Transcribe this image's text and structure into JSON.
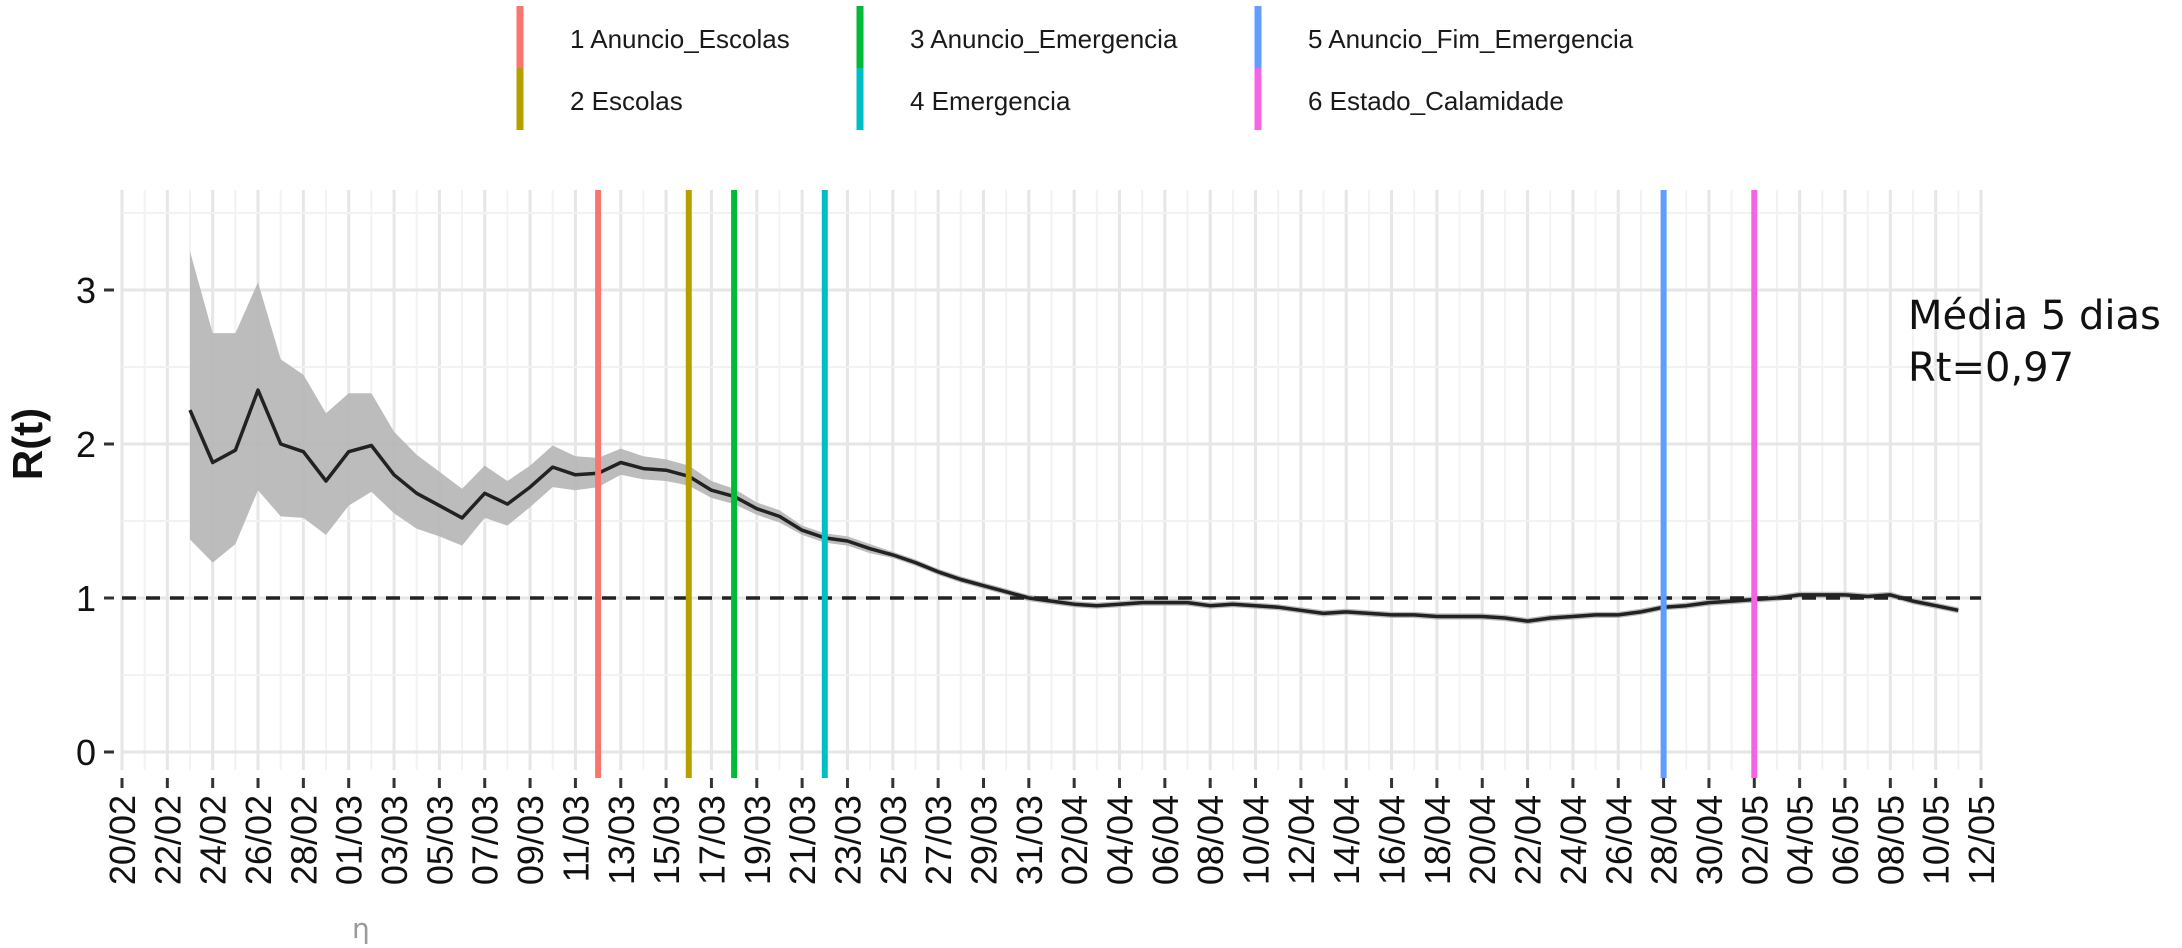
{
  "chart_data": {
    "type": "line",
    "xlabel": "",
    "ylabel": "R(t)",
    "ylim": [
      0,
      3.5
    ],
    "yticks": [
      "0",
      "1",
      "2",
      "3"
    ],
    "xlim": [
      "2020-02-20",
      "2020-05-12"
    ],
    "x_tick_labels": [
      "20/02",
      "22/02",
      "24/02",
      "26/02",
      "28/02",
      "01/03",
      "03/03",
      "05/03",
      "07/03",
      "09/03",
      "11/03",
      "13/03",
      "15/03",
      "17/03",
      "19/03",
      "21/03",
      "23/03",
      "25/03",
      "27/03",
      "29/03",
      "31/03",
      "02/04",
      "04/04",
      "06/04",
      "08/04",
      "10/04",
      "12/04",
      "14/04",
      "16/04",
      "18/04",
      "20/04",
      "22/04",
      "24/04",
      "26/04",
      "28/04",
      "30/04",
      "02/05",
      "04/05",
      "06/05",
      "08/05",
      "10/05",
      "12/05"
    ],
    "x_tick_dates": [
      "2020-02-20",
      "2020-02-22",
      "2020-02-24",
      "2020-02-26",
      "2020-02-28",
      "2020-03-01",
      "2020-03-03",
      "2020-03-05",
      "2020-03-07",
      "2020-03-09",
      "2020-03-11",
      "2020-03-13",
      "2020-03-15",
      "2020-03-17",
      "2020-03-19",
      "2020-03-21",
      "2020-03-23",
      "2020-03-25",
      "2020-03-27",
      "2020-03-29",
      "2020-03-31",
      "2020-04-02",
      "2020-04-04",
      "2020-04-06",
      "2020-04-08",
      "2020-04-10",
      "2020-04-12",
      "2020-04-14",
      "2020-04-16",
      "2020-04-18",
      "2020-04-20",
      "2020-04-22",
      "2020-04-24",
      "2020-04-26",
      "2020-04-28",
      "2020-04-30",
      "2020-05-02",
      "2020-05-04",
      "2020-05-06",
      "2020-05-08",
      "2020-05-10",
      "2020-05-12"
    ],
    "reference_line": {
      "y": 1,
      "style": "dashed"
    },
    "grid": true,
    "legend_position": "top",
    "series": [
      {
        "color": "#222222",
        "band_color": "#b5b5b5",
        "points": [
          {
            "x": "2020-02-23",
            "y": 2.22,
            "lo": 1.38,
            "hi": 3.25
          },
          {
            "x": "2020-02-24",
            "y": 1.88,
            "lo": 1.23,
            "hi": 2.72
          },
          {
            "x": "2020-02-25",
            "y": 1.96,
            "lo": 1.35,
            "hi": 2.72
          },
          {
            "x": "2020-02-26",
            "y": 2.35,
            "lo": 1.7,
            "hi": 3.05
          },
          {
            "x": "2020-02-27",
            "y": 2.0,
            "lo": 1.53,
            "hi": 2.55
          },
          {
            "x": "2020-02-28",
            "y": 1.95,
            "lo": 1.52,
            "hi": 2.45
          },
          {
            "x": "2020-02-29",
            "y": 1.76,
            "lo": 1.41,
            "hi": 2.2
          },
          {
            "x": "2020-03-01",
            "y": 1.95,
            "lo": 1.6,
            "hi": 2.33
          },
          {
            "x": "2020-03-02",
            "y": 1.99,
            "lo": 1.69,
            "hi": 2.33
          },
          {
            "x": "2020-03-03",
            "y": 1.8,
            "lo": 1.55,
            "hi": 2.08
          },
          {
            "x": "2020-03-04",
            "y": 1.68,
            "lo": 1.45,
            "hi": 1.93
          },
          {
            "x": "2020-03-05",
            "y": 1.6,
            "lo": 1.4,
            "hi": 1.82
          },
          {
            "x": "2020-03-06",
            "y": 1.52,
            "lo": 1.34,
            "hi": 1.71
          },
          {
            "x": "2020-03-07",
            "y": 1.68,
            "lo": 1.52,
            "hi": 1.86
          },
          {
            "x": "2020-03-08",
            "y": 1.61,
            "lo": 1.47,
            "hi": 1.76
          },
          {
            "x": "2020-03-09",
            "y": 1.72,
            "lo": 1.59,
            "hi": 1.86
          },
          {
            "x": "2020-03-10",
            "y": 1.85,
            "lo": 1.72,
            "hi": 1.99
          },
          {
            "x": "2020-03-11",
            "y": 1.8,
            "lo": 1.7,
            "hi": 1.92
          },
          {
            "x": "2020-03-12",
            "y": 1.81,
            "lo": 1.72,
            "hi": 1.91
          },
          {
            "x": "2020-03-13",
            "y": 1.88,
            "lo": 1.8,
            "hi": 1.97
          },
          {
            "x": "2020-03-14",
            "y": 1.84,
            "lo": 1.77,
            "hi": 1.92
          },
          {
            "x": "2020-03-15",
            "y": 1.83,
            "lo": 1.76,
            "hi": 1.9
          },
          {
            "x": "2020-03-16",
            "y": 1.79,
            "lo": 1.73,
            "hi": 1.86
          },
          {
            "x": "2020-03-17",
            "y": 1.7,
            "lo": 1.65,
            "hi": 1.76
          },
          {
            "x": "2020-03-18",
            "y": 1.66,
            "lo": 1.61,
            "hi": 1.71
          },
          {
            "x": "2020-03-19",
            "y": 1.58,
            "lo": 1.54,
            "hi": 1.62
          },
          {
            "x": "2020-03-20",
            "y": 1.53,
            "lo": 1.49,
            "hi": 1.57
          },
          {
            "x": "2020-03-21",
            "y": 1.44,
            "lo": 1.41,
            "hi": 1.47
          },
          {
            "x": "2020-03-22",
            "y": 1.39,
            "lo": 1.36,
            "hi": 1.42
          },
          {
            "x": "2020-03-23",
            "y": 1.37,
            "lo": 1.34,
            "hi": 1.4
          },
          {
            "x": "2020-03-24",
            "y": 1.32,
            "lo": 1.29,
            "hi": 1.35
          },
          {
            "x": "2020-03-25",
            "y": 1.28,
            "lo": 1.26,
            "hi": 1.3
          },
          {
            "x": "2020-03-26",
            "y": 1.23,
            "lo": 1.21,
            "hi": 1.25
          },
          {
            "x": "2020-03-27",
            "y": 1.17,
            "lo": 1.15,
            "hi": 1.19
          },
          {
            "x": "2020-03-28",
            "y": 1.12,
            "lo": 1.1,
            "hi": 1.14
          },
          {
            "x": "2020-03-29",
            "y": 1.08,
            "lo": 1.06,
            "hi": 1.1
          },
          {
            "x": "2020-03-30",
            "y": 1.04,
            "lo": 1.02,
            "hi": 1.06
          },
          {
            "x": "2020-03-31",
            "y": 1.0,
            "lo": 0.98,
            "hi": 1.02
          },
          {
            "x": "2020-04-01",
            "y": 0.98,
            "lo": 0.96,
            "hi": 1.0
          },
          {
            "x": "2020-04-02",
            "y": 0.96,
            "lo": 0.94,
            "hi": 0.98
          },
          {
            "x": "2020-04-03",
            "y": 0.95,
            "lo": 0.93,
            "hi": 0.97
          },
          {
            "x": "2020-04-04",
            "y": 0.96,
            "lo": 0.94,
            "hi": 0.98
          },
          {
            "x": "2020-04-05",
            "y": 0.97,
            "lo": 0.95,
            "hi": 0.99
          },
          {
            "x": "2020-04-06",
            "y": 0.97,
            "lo": 0.95,
            "hi": 0.99
          },
          {
            "x": "2020-04-07",
            "y": 0.97,
            "lo": 0.95,
            "hi": 0.99
          },
          {
            "x": "2020-04-08",
            "y": 0.95,
            "lo": 0.93,
            "hi": 0.97
          },
          {
            "x": "2020-04-09",
            "y": 0.96,
            "lo": 0.94,
            "hi": 0.98
          },
          {
            "x": "2020-04-10",
            "y": 0.95,
            "lo": 0.93,
            "hi": 0.97
          },
          {
            "x": "2020-04-11",
            "y": 0.94,
            "lo": 0.92,
            "hi": 0.96
          },
          {
            "x": "2020-04-12",
            "y": 0.92,
            "lo": 0.9,
            "hi": 0.94
          },
          {
            "x": "2020-04-13",
            "y": 0.9,
            "lo": 0.88,
            "hi": 0.92
          },
          {
            "x": "2020-04-14",
            "y": 0.91,
            "lo": 0.89,
            "hi": 0.93
          },
          {
            "x": "2020-04-15",
            "y": 0.9,
            "lo": 0.88,
            "hi": 0.92
          },
          {
            "x": "2020-04-16",
            "y": 0.89,
            "lo": 0.87,
            "hi": 0.91
          },
          {
            "x": "2020-04-17",
            "y": 0.89,
            "lo": 0.87,
            "hi": 0.91
          },
          {
            "x": "2020-04-18",
            "y": 0.88,
            "lo": 0.86,
            "hi": 0.9
          },
          {
            "x": "2020-04-19",
            "y": 0.88,
            "lo": 0.86,
            "hi": 0.9
          },
          {
            "x": "2020-04-20",
            "y": 0.88,
            "lo": 0.86,
            "hi": 0.9
          },
          {
            "x": "2020-04-21",
            "y": 0.87,
            "lo": 0.85,
            "hi": 0.89
          },
          {
            "x": "2020-04-22",
            "y": 0.85,
            "lo": 0.83,
            "hi": 0.87
          },
          {
            "x": "2020-04-23",
            "y": 0.87,
            "lo": 0.85,
            "hi": 0.89
          },
          {
            "x": "2020-04-24",
            "y": 0.88,
            "lo": 0.86,
            "hi": 0.9
          },
          {
            "x": "2020-04-25",
            "y": 0.89,
            "lo": 0.87,
            "hi": 0.91
          },
          {
            "x": "2020-04-26",
            "y": 0.89,
            "lo": 0.87,
            "hi": 0.91
          },
          {
            "x": "2020-04-27",
            "y": 0.91,
            "lo": 0.89,
            "hi": 0.93
          },
          {
            "x": "2020-04-28",
            "y": 0.94,
            "lo": 0.92,
            "hi": 0.96
          },
          {
            "x": "2020-04-29",
            "y": 0.95,
            "lo": 0.93,
            "hi": 0.97
          },
          {
            "x": "2020-04-30",
            "y": 0.97,
            "lo": 0.95,
            "hi": 0.99
          },
          {
            "x": "2020-05-01",
            "y": 0.98,
            "lo": 0.96,
            "hi": 1.0
          },
          {
            "x": "2020-05-02",
            "y": 0.99,
            "lo": 0.97,
            "hi": 1.01
          },
          {
            "x": "2020-05-03",
            "y": 1.0,
            "lo": 0.98,
            "hi": 1.02
          },
          {
            "x": "2020-05-04",
            "y": 1.02,
            "lo": 1.0,
            "hi": 1.04
          },
          {
            "x": "2020-05-05",
            "y": 1.02,
            "lo": 1.0,
            "hi": 1.04
          },
          {
            "x": "2020-05-06",
            "y": 1.02,
            "lo": 1.0,
            "hi": 1.04
          },
          {
            "x": "2020-05-07",
            "y": 1.01,
            "lo": 0.99,
            "hi": 1.03
          },
          {
            "x": "2020-05-08",
            "y": 1.02,
            "lo": 1.0,
            "hi": 1.04
          },
          {
            "x": "2020-05-09",
            "y": 0.98,
            "lo": 0.96,
            "hi": 1.0
          },
          {
            "x": "2020-05-10",
            "y": 0.95,
            "lo": 0.93,
            "hi": 0.97
          },
          {
            "x": "2020-05-11",
            "y": 0.92,
            "lo": 0.9,
            "hi": 0.94
          }
        ]
      }
    ],
    "events": [
      {
        "label": "1 Anuncio_Escolas",
        "date": "2020-03-12",
        "color": "#f8766d"
      },
      {
        "label": "2 Escolas",
        "date": "2020-03-16",
        "color": "#b79f00"
      },
      {
        "label": "3 Anuncio_Emergencia",
        "date": "2020-03-18",
        "color": "#00ba38"
      },
      {
        "label": "4 Emergencia",
        "date": "2020-03-22",
        "color": "#00bfc4"
      },
      {
        "label": "5 Anuncio_Fim_Emergencia",
        "date": "2020-04-28",
        "color": "#619cff"
      },
      {
        "label": "6 Estado_Calamidade",
        "date": "2020-05-02",
        "color": "#f564e3"
      }
    ]
  },
  "annotation": {
    "line1": "Média 5 dias",
    "line2": "Rt=0,97"
  },
  "stray_mark": "η"
}
